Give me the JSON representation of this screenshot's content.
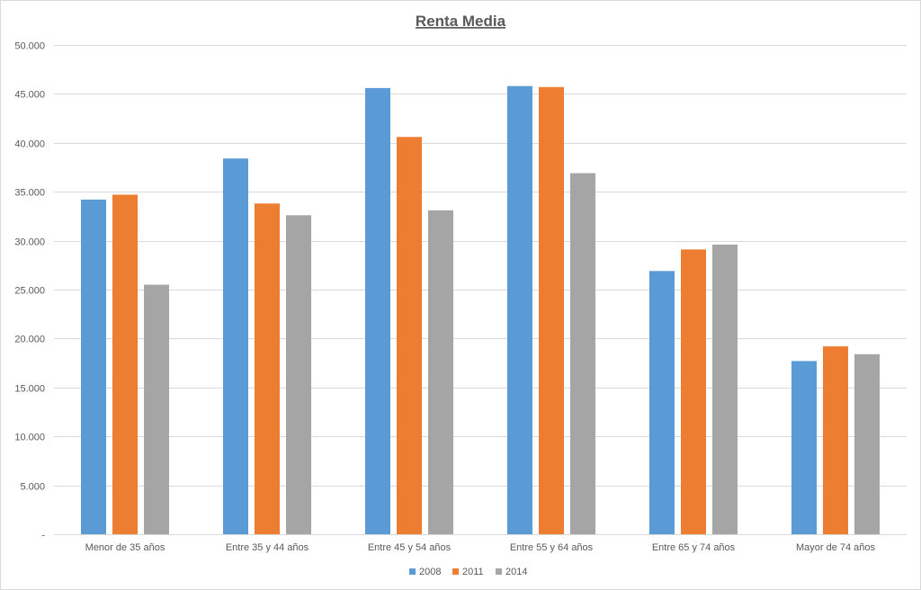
{
  "chart_data": {
    "type": "bar",
    "title": "Renta Media",
    "categories": [
      "Menor de 35 años",
      "Entre 35 y 44 años",
      "Entre 45 y 54 años",
      "Entre 55 y 64 años",
      "Entre 65 y 74 años",
      "Mayor de 74 años"
    ],
    "series": [
      {
        "name": "2008",
        "color": "#5b9bd5",
        "values": [
          34200,
          38400,
          45600,
          45800,
          26900,
          17700
        ]
      },
      {
        "name": "2011",
        "color": "#ed7d31",
        "values": [
          34700,
          33800,
          40600,
          45700,
          29100,
          19200
        ]
      },
      {
        "name": "2014",
        "color": "#a5a5a5",
        "values": [
          25500,
          32600,
          33100,
          36900,
          29600,
          18400
        ]
      }
    ],
    "ylim": [
      0,
      50000
    ],
    "yticks": [
      0,
      5000,
      10000,
      15000,
      20000,
      25000,
      30000,
      35000,
      40000,
      45000,
      50000
    ],
    "ytick_labels": [
      "-",
      "5.000",
      "10.000",
      "15.000",
      "20.000",
      "25.000",
      "30.000",
      "35.000",
      "40.000",
      "45.000",
      "50.000"
    ],
    "xlabel": "",
    "ylabel": "",
    "grid": true,
    "legend_position": "bottom"
  }
}
